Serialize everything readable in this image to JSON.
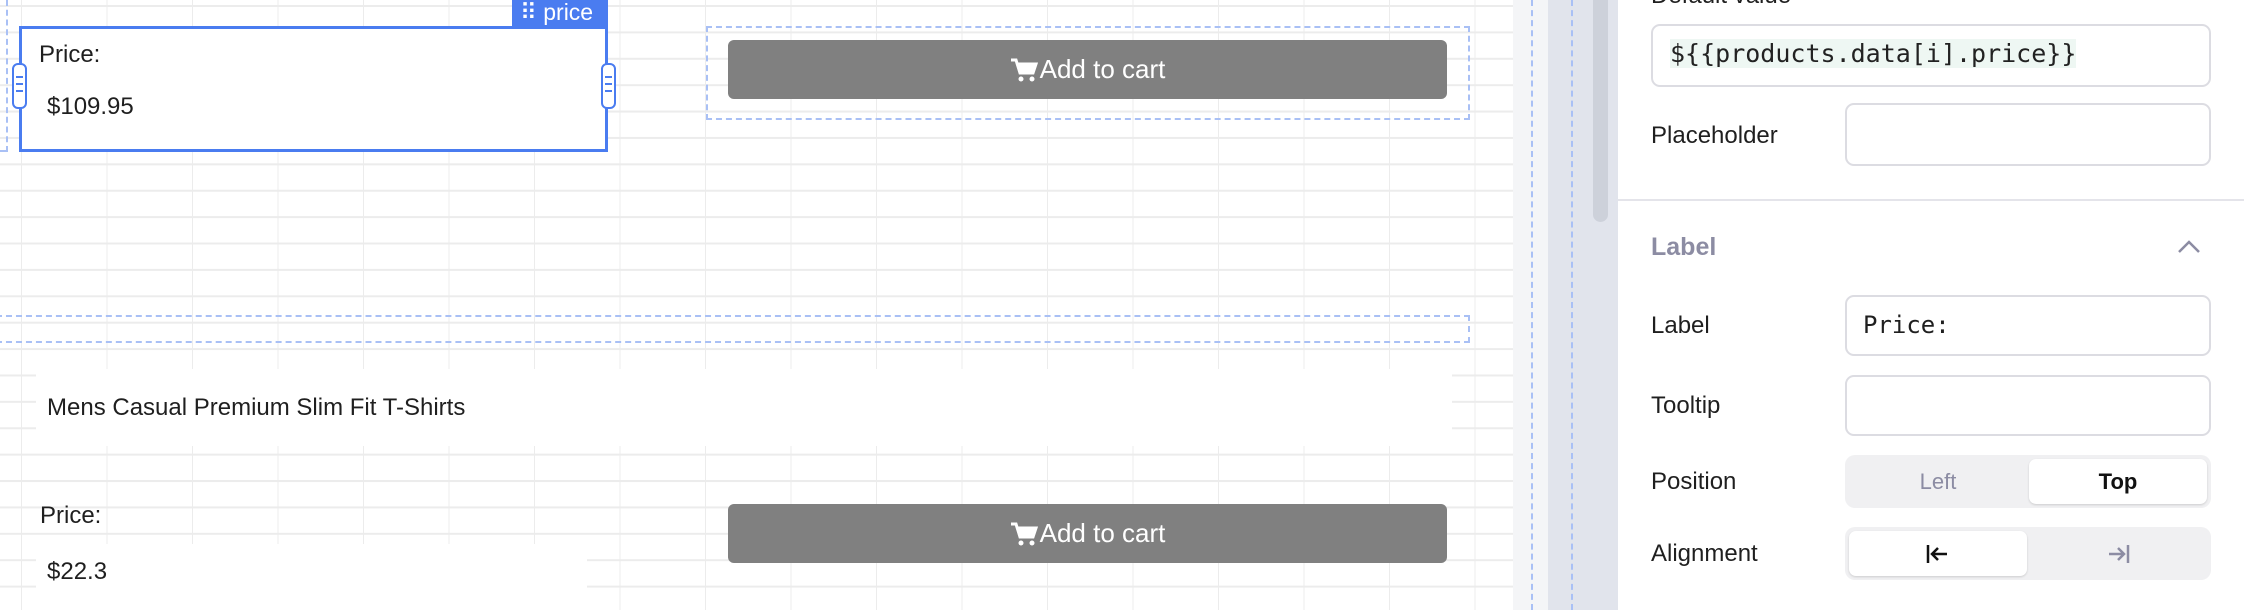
{
  "canvas": {
    "selected_widget": {
      "name_tag": "price",
      "label": "Price:",
      "value": "$109.95"
    },
    "item1": {
      "button_label": "Add to cart"
    },
    "item2": {
      "title": "Mens Casual Premium Slim Fit T-Shirts",
      "price_label": "Price:",
      "price_value": "$22.3",
      "button_label": "Add to cart"
    }
  },
  "panel": {
    "default_value_label": "Default value",
    "default_value": "${{products.data[i].price}}",
    "placeholder_label": "Placeholder",
    "placeholder_value": "",
    "label_section_title": "Label",
    "label_label": "Label",
    "label_value": "Price:",
    "tooltip_label": "Tooltip",
    "tooltip_value": "",
    "position_label": "Position",
    "position_options": [
      "Left",
      "Top"
    ],
    "position_selected": "Top",
    "alignment_label": "Alignment",
    "alignment_options": [
      "align-left-icon",
      "align-right-icon"
    ],
    "alignment_selected": "align-left-icon"
  },
  "colors": {
    "accent": "#4a7cf0",
    "button": "#808080",
    "dashed_outline": "#a9c0f5"
  }
}
